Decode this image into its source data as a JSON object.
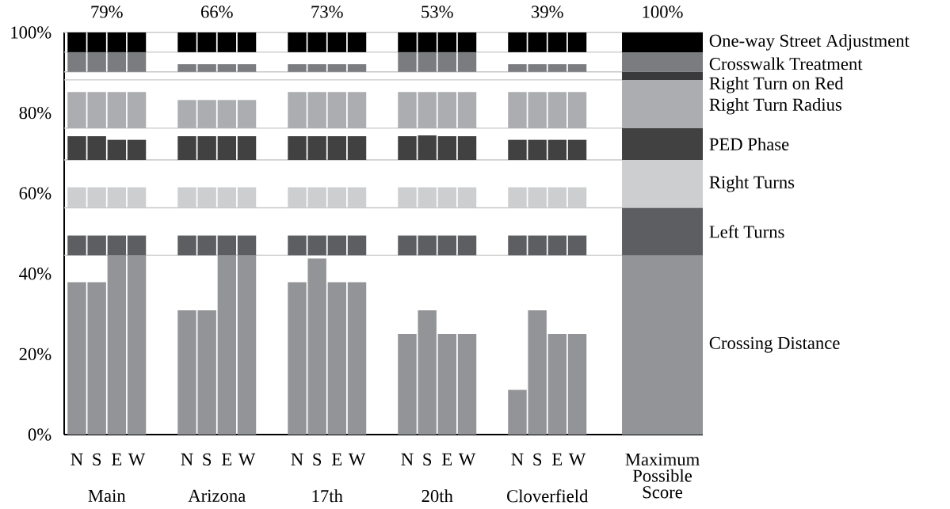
{
  "chart_data": {
    "type": "bar",
    "categories": [
      "N",
      "S",
      "E",
      "W",
      "N",
      "S",
      "E",
      "W",
      "N",
      "S",
      "E",
      "W",
      "N",
      "S",
      "E",
      "W",
      "N",
      "S",
      "E",
      "W",
      "Maximum Possible Score"
    ],
    "series": [
      {
        "name": "Crossing Distance",
        "color": "#939497",
        "base": [
          0,
          0,
          0,
          0,
          0,
          0,
          0,
          0,
          0,
          0,
          0,
          0,
          0,
          0,
          0,
          0,
          0,
          0,
          0,
          0,
          0
        ],
        "values": [
          37.9,
          37.9,
          44.6,
          44.6,
          30.9,
          30.9,
          44.6,
          44.6,
          37.9,
          43.8,
          37.9,
          37.9,
          25.0,
          30.9,
          25.0,
          25.0,
          11.1,
          30.9,
          25.0,
          25.0,
          44.6
        ]
      },
      {
        "name": "Left Turns",
        "color": "#5d5e61",
        "base": [
          44.6,
          44.6,
          44.6,
          44.6,
          44.6,
          44.6,
          44.6,
          44.6,
          44.6,
          44.6,
          44.6,
          44.6,
          44.6,
          44.6,
          44.6,
          44.6,
          44.6,
          44.6,
          44.6,
          44.6,
          44.6
        ],
        "values": [
          4.9,
          4.9,
          4.9,
          4.9,
          4.9,
          4.9,
          4.9,
          4.9,
          4.9,
          4.9,
          4.9,
          4.9,
          4.9,
          4.9,
          4.9,
          4.9,
          4.9,
          4.9,
          4.9,
          4.9,
          11.8
        ]
      },
      {
        "name": "Right Turns",
        "color": "#cdcecf",
        "base": [
          56.4,
          56.4,
          56.4,
          56.4,
          56.4,
          56.4,
          56.4,
          56.4,
          56.4,
          56.4,
          56.4,
          56.4,
          56.4,
          56.4,
          56.4,
          56.4,
          56.4,
          56.4,
          56.4,
          56.4,
          56.4
        ],
        "values": [
          5.1,
          5.1,
          5.1,
          5.1,
          5.1,
          5.1,
          5.1,
          5.1,
          5.1,
          5.1,
          5.1,
          5.1,
          5.1,
          5.1,
          5.1,
          5.1,
          5.1,
          5.1,
          5.1,
          5.1,
          11.9
        ]
      },
      {
        "name": "PED Phase",
        "color": "#414141",
        "base": [
          68.3,
          68.3,
          68.3,
          68.3,
          68.3,
          68.3,
          68.3,
          68.3,
          68.3,
          68.3,
          68.3,
          68.3,
          68.3,
          68.3,
          68.3,
          68.3,
          68.3,
          68.3,
          68.3,
          68.3,
          68.3
        ],
        "values": [
          5.9,
          5.9,
          5.0,
          5.0,
          5.9,
          5.9,
          5.9,
          5.9,
          5.9,
          5.9,
          5.9,
          5.9,
          5.9,
          6.1,
          5.9,
          5.9,
          5.0,
          5.0,
          5.0,
          5.0,
          7.9
        ]
      },
      {
        "name": "Right Turn Radius",
        "color": "#acadb0",
        "base": [
          76.2,
          76.2,
          76.2,
          76.2,
          76.2,
          76.2,
          76.2,
          76.2,
          76.2,
          76.2,
          76.2,
          76.2,
          76.2,
          76.2,
          76.2,
          76.2,
          76.2,
          76.2,
          76.2,
          76.2,
          76.2
        ],
        "values": [
          9.0,
          9.0,
          9.0,
          9.0,
          7.0,
          7.0,
          7.0,
          7.0,
          9.0,
          9.0,
          9.0,
          9.0,
          9.0,
          9.0,
          9.0,
          9.0,
          9.0,
          9.0,
          9.0,
          9.0,
          12.0
        ]
      },
      {
        "name": "Right Turn on Red",
        "color": "#3a3a3c",
        "base": [
          null,
          null,
          null,
          null,
          null,
          null,
          null,
          null,
          null,
          null,
          null,
          null,
          null,
          null,
          null,
          null,
          null,
          null,
          null,
          null,
          88.2
        ],
        "values": [
          null,
          null,
          null,
          null,
          null,
          null,
          null,
          null,
          null,
          null,
          null,
          null,
          null,
          null,
          null,
          null,
          null,
          null,
          null,
          null,
          2.0
        ]
      },
      {
        "name": "Crosswalk Treatment",
        "color": "#7b7c80",
        "base": [
          90.2,
          90.2,
          90.2,
          90.2,
          90.2,
          90.2,
          90.2,
          90.2,
          90.2,
          90.2,
          90.2,
          90.2,
          90.2,
          90.2,
          90.2,
          90.2,
          90.2,
          90.2,
          90.2,
          90.2,
          90.2
        ],
        "values": [
          4.9,
          4.9,
          4.9,
          4.9,
          1.9,
          1.9,
          1.9,
          1.9,
          1.9,
          1.9,
          1.9,
          1.9,
          4.9,
          4.9,
          4.9,
          4.9,
          1.9,
          1.9,
          1.9,
          1.9,
          4.9
        ]
      },
      {
        "name": "One-way Street Adjustment",
        "color": "#000000",
        "base": [
          95.1,
          95.1,
          95.1,
          95.1,
          95.1,
          95.1,
          95.1,
          95.1,
          95.1,
          95.1,
          95.1,
          95.1,
          95.1,
          95.1,
          95.1,
          95.1,
          95.1,
          95.1,
          95.1,
          95.1,
          95.1
        ],
        "values": [
          4.9,
          4.9,
          4.9,
          4.9,
          4.9,
          4.9,
          4.9,
          4.9,
          4.9,
          4.9,
          4.9,
          4.9,
          4.9,
          4.9,
          4.9,
          4.9,
          4.9,
          4.9,
          4.9,
          4.9,
          4.9
        ]
      }
    ],
    "ylim": [
      0,
      100
    ],
    "yticks": [
      {
        "value": 0,
        "label": "0%"
      },
      {
        "value": 20,
        "label": "20%"
      },
      {
        "value": 40,
        "label": "40%"
      },
      {
        "value": 60,
        "label": "60%"
      },
      {
        "value": 80,
        "label": "80%"
      },
      {
        "value": 100,
        "label": "100%"
      }
    ],
    "ref_lines": [
      {
        "axis": "y",
        "value": 44.6,
        "color": "#c8c8c8"
      },
      {
        "axis": "y",
        "value": 56.4,
        "color": "#c8c8c8"
      },
      {
        "axis": "y",
        "value": 68.3,
        "color": "#c8c8c8"
      },
      {
        "axis": "y",
        "value": 76.2,
        "color": "#c8c8c8"
      },
      {
        "axis": "y",
        "value": 88.2,
        "color": "#c8c8c8"
      },
      {
        "axis": "y",
        "value": 90.2,
        "color": "#c8c8c8"
      },
      {
        "axis": "y",
        "value": 95.1,
        "color": "#c8c8c8"
      },
      {
        "axis": "y",
        "value": 100,
        "color": "#c8c8c8"
      }
    ],
    "annotations": [
      "79%",
      "66%",
      "73%",
      "53%",
      "39%",
      "100%",
      "Main",
      "Arizona",
      "17th",
      "20th",
      "Cloverfield"
    ]
  }
}
